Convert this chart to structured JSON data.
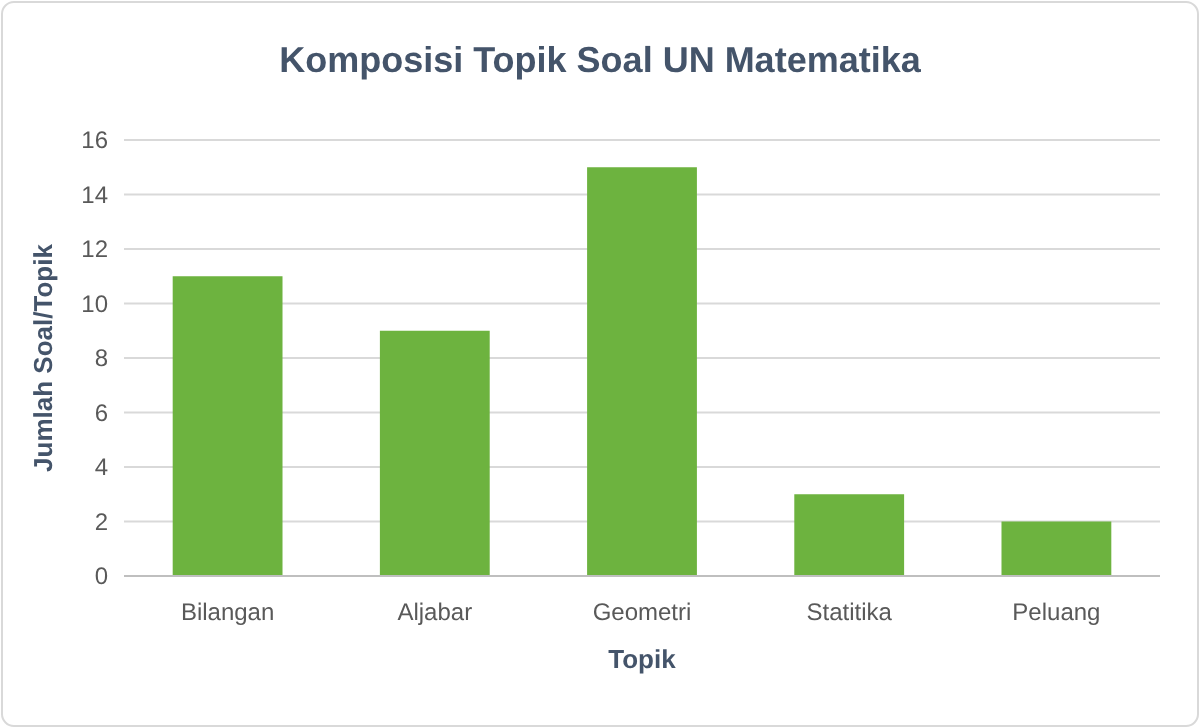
{
  "chart_data": {
    "type": "bar",
    "title": "Komposisi Topik Soal UN Matematika",
    "xlabel": "Topik",
    "ylabel": "Jumlah Soal/Topik",
    "categories": [
      "Bilangan",
      "Aljabar",
      "Geometri",
      "Statitika",
      "Peluang"
    ],
    "values": [
      11,
      9,
      15,
      3,
      2
    ],
    "color": "#6db33f",
    "ylim": [
      0,
      16
    ],
    "yticks": [
      0,
      2,
      4,
      6,
      8,
      10,
      12,
      14,
      16
    ],
    "grid": "y"
  }
}
